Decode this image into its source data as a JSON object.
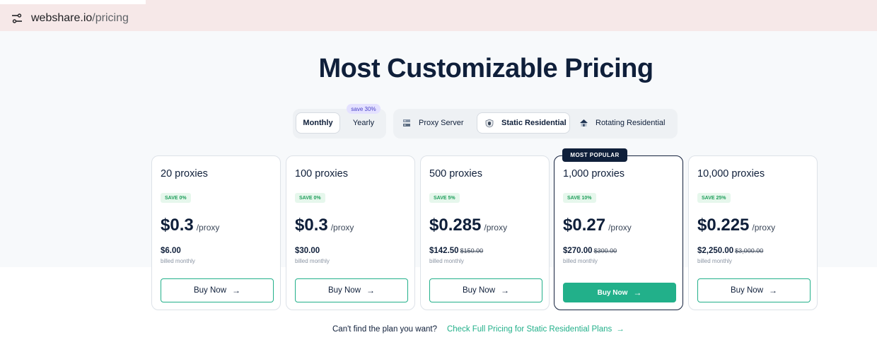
{
  "browser": {
    "url_domain": "webshare.io",
    "url_path": "/pricing",
    "site_icon": "site-settings-icon"
  },
  "page": {
    "title": "Most Customizable Pricing"
  },
  "billing": {
    "monthly": "Monthly",
    "yearly": "Yearly",
    "save_badge": "save 30%"
  },
  "products": [
    {
      "label": "Proxy Server",
      "icon": "server-icon"
    },
    {
      "label": "Static Residential",
      "icon": "shield-icon"
    },
    {
      "label": "Rotating Residential",
      "icon": "house-icon"
    }
  ],
  "popular_tag": "MOST POPULAR",
  "plans": [
    {
      "qty": "20 proxies",
      "save": "SAVE 0%",
      "price": "$0.3",
      "unit": "/proxy",
      "total": "$6.00",
      "strike": "",
      "billed": "billed monthly",
      "cta": "Buy Now"
    },
    {
      "qty": "100 proxies",
      "save": "SAVE 0%",
      "price": "$0.3",
      "unit": "/proxy",
      "total": "$30.00",
      "strike": "",
      "billed": "billed monthly",
      "cta": "Buy Now"
    },
    {
      "qty": "500 proxies",
      "save": "SAVE 5%",
      "price": "$0.285",
      "unit": "/proxy",
      "total": "$142.50",
      "strike": "$150.00",
      "billed": "billed monthly",
      "cta": "Buy Now"
    },
    {
      "qty": "1,000 proxies",
      "save": "SAVE 10%",
      "price": "$0.27",
      "unit": "/proxy",
      "total": "$270.00",
      "strike": "$300.00",
      "billed": "billed monthly",
      "cta": "Buy Now"
    },
    {
      "qty": "10,000 proxies",
      "save": "SAVE 25%",
      "price": "$0.225",
      "unit": "/proxy",
      "total": "$2,250.00",
      "strike": "$3,000.00",
      "billed": "billed monthly",
      "cta": "Buy Now"
    }
  ],
  "footer": {
    "question": "Can't find the plan you want?",
    "link": "Check Full Pricing for Static Residential Plans"
  },
  "colors": {
    "accent": "#22b08a",
    "navy": "#0f1f3a"
  }
}
